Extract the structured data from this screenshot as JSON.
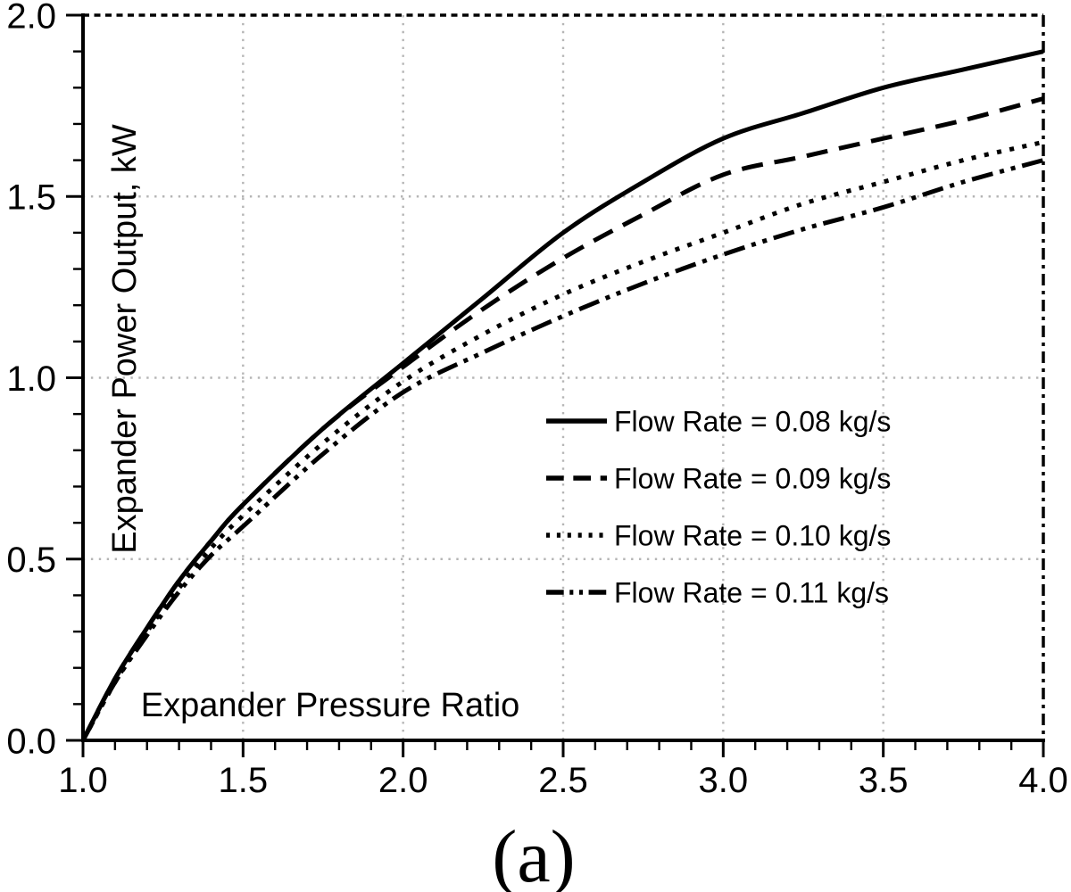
{
  "figure": {
    "caption": "(a)"
  },
  "chart_data": {
    "type": "line",
    "title": "",
    "xlabel": "Expander Pressure Ratio",
    "ylabel": "Expander Power Output, kW",
    "xlim": [
      1.0,
      4.0
    ],
    "ylim": [
      0.0,
      2.0
    ],
    "x_major_ticks": [
      1.0,
      1.5,
      2.0,
      2.5,
      3.0,
      3.5,
      4.0
    ],
    "y_major_ticks": [
      0.0,
      0.5,
      1.0,
      1.5,
      2.0
    ],
    "x_minor_step": 0.1,
    "y_minor_step": 0.1,
    "grid": "dotted gray lines at major ticks",
    "legend_position": "inside lower-right, no border",
    "x": [
      1.0,
      1.1,
      1.2,
      1.3,
      1.4,
      1.5,
      1.75,
      2.0,
      2.25,
      2.5,
      2.75,
      3.0,
      3.25,
      3.5,
      3.75,
      4.0
    ],
    "series": [
      {
        "name": "Flow Rate = 0.08 kg/s",
        "dash": "solid",
        "values": [
          0.0,
          0.17,
          0.31,
          0.44,
          0.55,
          0.65,
          0.86,
          1.04,
          1.22,
          1.4,
          1.54,
          1.66,
          1.73,
          1.8,
          1.85,
          1.9
        ]
      },
      {
        "name": "Flow Rate = 0.09 kg/s",
        "dash": "dashed",
        "values": [
          0.0,
          0.17,
          0.31,
          0.44,
          0.55,
          0.65,
          0.86,
          1.03,
          1.19,
          1.33,
          1.45,
          1.56,
          1.61,
          1.66,
          1.71,
          1.77
        ]
      },
      {
        "name": "Flow Rate = 0.10 kg/s",
        "dash": "dotted",
        "values": [
          0.0,
          0.16,
          0.3,
          0.42,
          0.53,
          0.62,
          0.82,
          0.99,
          1.12,
          1.23,
          1.32,
          1.4,
          1.48,
          1.54,
          1.6,
          1.65
        ]
      },
      {
        "name": "Flow Rate = 0.11 kg/s",
        "dash": "dash-dot-dot",
        "values": [
          0.0,
          0.16,
          0.29,
          0.41,
          0.51,
          0.59,
          0.79,
          0.96,
          1.07,
          1.17,
          1.26,
          1.34,
          1.41,
          1.47,
          1.54,
          1.6
        ]
      }
    ],
    "colors": {
      "line": "#000000",
      "grid": "#b5b5b5",
      "background": "#ffffff"
    }
  }
}
